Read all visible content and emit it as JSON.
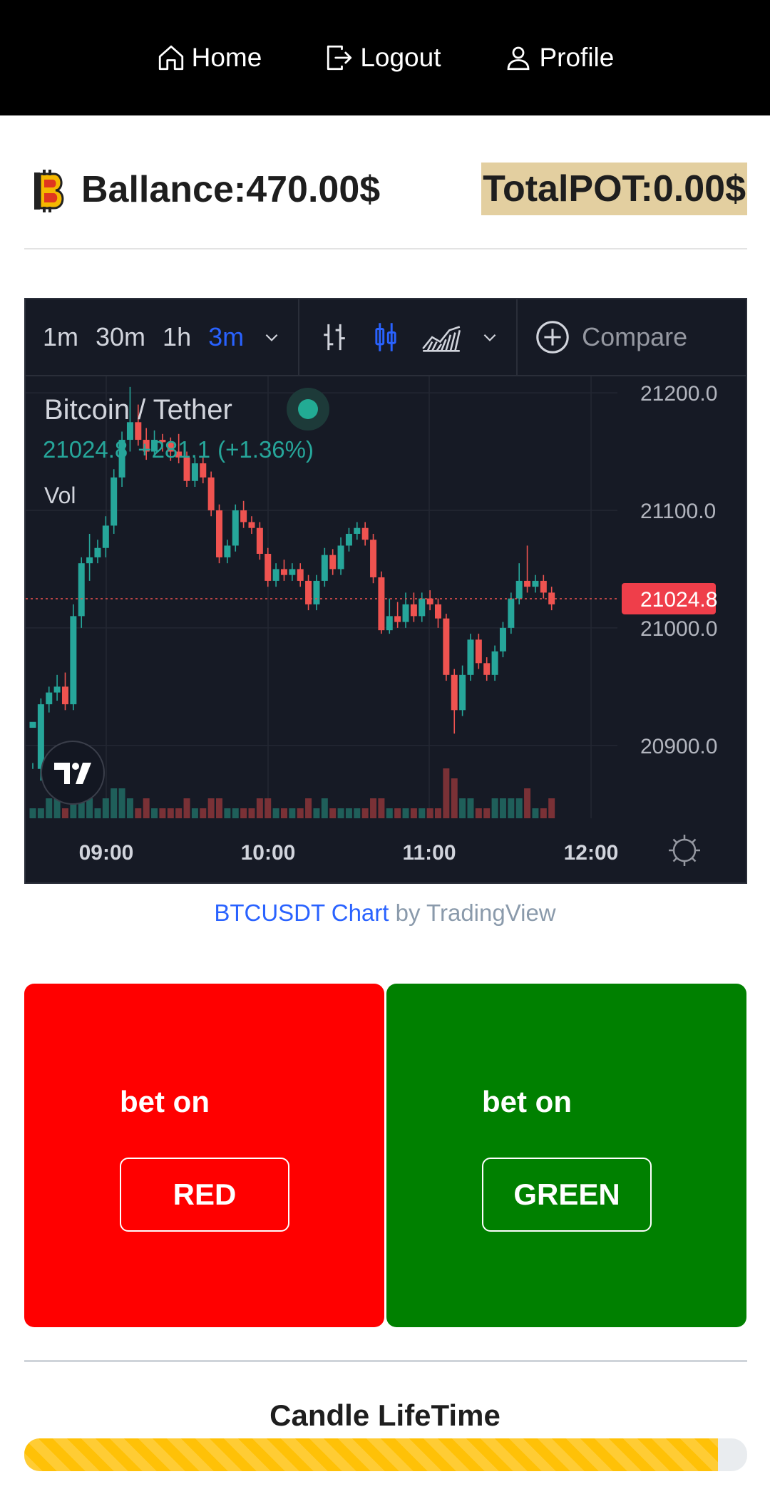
{
  "nav": {
    "home": "Home",
    "logout": "Logout",
    "profile": "Profile"
  },
  "balance": {
    "text": "Ballance:470.00$"
  },
  "pot": {
    "text": "TotalPOT:0.00$"
  },
  "tv_toolbar": {
    "timeframes": [
      "1m",
      "30m",
      "1h",
      "3m"
    ],
    "active_timeframe": "3m",
    "compare_label": "Compare"
  },
  "chart_data": {
    "type": "candlestick",
    "title": "Bitcoin / Tether",
    "quote": {
      "last": "21024.8",
      "change": "+281.1",
      "change_pct": "(+1.36%)"
    },
    "volume_label": "Vol",
    "last_price_label": "21024.8",
    "y_ticks": [
      "21200.0",
      "21100.0",
      "21000.0",
      "20900.0"
    ],
    "y_tick_values": [
      21200,
      21100,
      21000,
      20900
    ],
    "x_ticks": [
      "09:00",
      "10:00",
      "11:00",
      "12:00"
    ],
    "ylim": [
      20838,
      21214
    ],
    "last_price": 21024.8,
    "colors": {
      "up": "#26a69a",
      "down": "#ef5350",
      "bg": "#161a25",
      "grid": "#232733"
    },
    "candles": [
      [
        20915,
        20920,
        20885,
        20880,
        1
      ],
      [
        20880,
        20935,
        20940,
        20870,
        1
      ],
      [
        20935,
        20945,
        20950,
        20928,
        2
      ],
      [
        20945,
        20950,
        20960,
        20938,
        2
      ],
      [
        20950,
        20935,
        20962,
        20930,
        1
      ],
      [
        20935,
        21010,
        21020,
        20930,
        4
      ],
      [
        21010,
        21055,
        21060,
        21000,
        3
      ],
      [
        21055,
        21060,
        21080,
        21040,
        2
      ],
      [
        21060,
        21068,
        21075,
        21055,
        1
      ],
      [
        21068,
        21087,
        21095,
        21060,
        2
      ],
      [
        21087,
        21128,
        21135,
        21080,
        3
      ],
      [
        21128,
        21160,
        21167,
        21120,
        3
      ],
      [
        21160,
        21175,
        21205,
        21150,
        2
      ],
      [
        21175,
        21160,
        21190,
        21155,
        1
      ],
      [
        21160,
        21150,
        21170,
        21143,
        2
      ],
      [
        21150,
        21160,
        21168,
        21145,
        1
      ],
      [
        21160,
        21158,
        21165,
        21150,
        1
      ],
      [
        21158,
        21150,
        21162,
        21142,
        1
      ],
      [
        21150,
        21145,
        21165,
        21140,
        1
      ],
      [
        21145,
        21125,
        21150,
        21120,
        2
      ],
      [
        21125,
        21140,
        21145,
        21120,
        1
      ],
      [
        21140,
        21128,
        21145,
        21123,
        1
      ],
      [
        21128,
        21100,
        21133,
        21095,
        2
      ],
      [
        21100,
        21060,
        21105,
        21055,
        2
      ],
      [
        21060,
        21070,
        21075,
        21055,
        1
      ],
      [
        21070,
        21100,
        21105,
        21065,
        1
      ],
      [
        21100,
        21090,
        21108,
        21085,
        1
      ],
      [
        21090,
        21085,
        21095,
        21080,
        1
      ],
      [
        21085,
        21063,
        21090,
        21058,
        2
      ],
      [
        21063,
        21040,
        21068,
        21035,
        2
      ],
      [
        21040,
        21050,
        21055,
        21035,
        1
      ],
      [
        21050,
        21045,
        21058,
        21040,
        1
      ],
      [
        21045,
        21050,
        21055,
        21040,
        1
      ],
      [
        21050,
        21040,
        21055,
        21035,
        1
      ],
      [
        21040,
        21020,
        21045,
        21015,
        2
      ],
      [
        21020,
        21040,
        21045,
        21015,
        1
      ],
      [
        21040,
        21062,
        21068,
        21035,
        2
      ],
      [
        21062,
        21050,
        21067,
        21045,
        1
      ],
      [
        21050,
        21070,
        21077,
        21045,
        1
      ],
      [
        21070,
        21080,
        21085,
        21065,
        1
      ],
      [
        21080,
        21085,
        21090,
        21075,
        1
      ],
      [
        21085,
        21075,
        21090,
        21070,
        1
      ],
      [
        21075,
        21043,
        21080,
        21038,
        2
      ],
      [
        21043,
        20998,
        21048,
        20995,
        2
      ],
      [
        20998,
        21010,
        21025,
        20995,
        1
      ],
      [
        21010,
        21005,
        21022,
        21000,
        1
      ],
      [
        21005,
        21020,
        21030,
        21000,
        1
      ],
      [
        21020,
        21010,
        21030,
        21005,
        1
      ],
      [
        21010,
        21025,
        21030,
        21005,
        1
      ],
      [
        21025,
        21020,
        21032,
        21015,
        1
      ],
      [
        21020,
        21008,
        21025,
        21000,
        1
      ],
      [
        21008,
        20960,
        21012,
        20955,
        5
      ],
      [
        20960,
        20930,
        20965,
        20910,
        4
      ],
      [
        20930,
        20960,
        20968,
        20925,
        2
      ],
      [
        20960,
        20990,
        20995,
        20955,
        2
      ],
      [
        20990,
        20970,
        20995,
        20965,
        1
      ],
      [
        20970,
        20960,
        20975,
        20955,
        1
      ],
      [
        20960,
        20980,
        20985,
        20955,
        2
      ],
      [
        20980,
        21000,
        21005,
        20975,
        2
      ],
      [
        21000,
        21025,
        21030,
        20995,
        2
      ],
      [
        21025,
        21040,
        21055,
        21020,
        2
      ],
      [
        21040,
        21035,
        21070,
        21030,
        3
      ],
      [
        21035,
        21040,
        21045,
        21030,
        1
      ],
      [
        21040,
        21030,
        21045,
        21025,
        1
      ],
      [
        21030,
        21020,
        21035,
        21015,
        2
      ]
    ]
  },
  "attribution": {
    "link": "BTCUSDT Chart",
    "rest": " by TradingView"
  },
  "bets": {
    "red": {
      "label": "bet on",
      "button": "RED",
      "color": "#ff0000"
    },
    "green": {
      "label": "bet on",
      "button": "GREEN",
      "color": "#008000"
    }
  },
  "lifetime": {
    "title": "Candle LifeTime",
    "progress": 0.96,
    "bar_color": "#ffc107"
  }
}
